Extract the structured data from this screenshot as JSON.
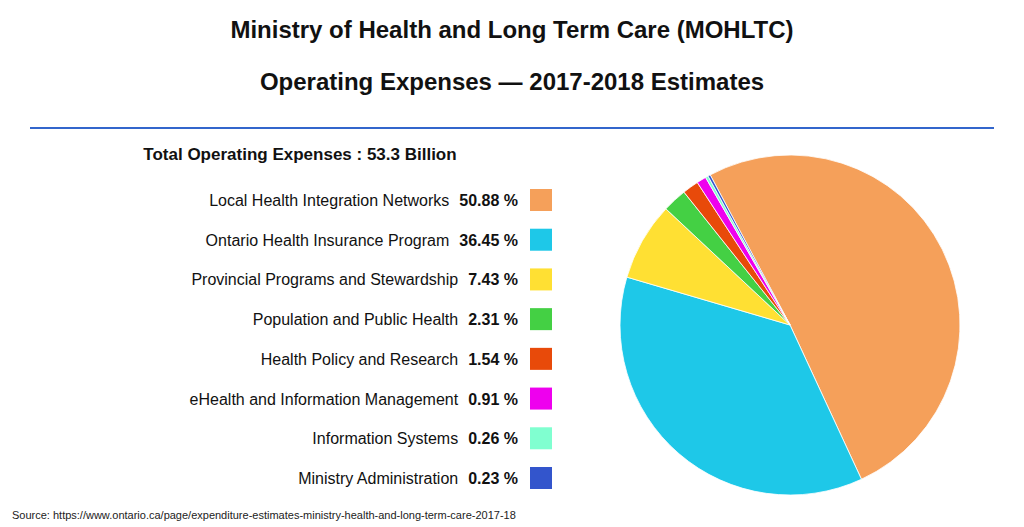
{
  "chart_data": {
    "type": "pie",
    "title": "Ministry of Health and Long Term Care (MOHLTC)",
    "subtitle": "Operating Expenses — 2017-2018 Estimates",
    "annotations": [
      "Total Operating Expenses : 53.3 Billion",
      "Source: https://www.ontario.ca/page/expenditure-estimates-ministry-health-and-long-term-care-2017-18"
    ],
    "categories": [
      "Local Health Integration Networks",
      "Ontario Health Insurance Program",
      "Provincial Programs and Stewardship",
      "Population and Public Health",
      "Health Policy and Research",
      "eHealth and Information Management",
      "Information Systems",
      "Ministry Administration"
    ],
    "values": [
      50.88,
      36.45,
      7.43,
      2.31,
      1.54,
      0.91,
      0.26,
      0.23
    ],
    "value_labels": [
      "50.88 %",
      "36.45 %",
      "7.43 %",
      "2.31 %",
      "1.54 %",
      "0.91 %",
      "0.26 %",
      "0.23 %"
    ],
    "colors": [
      "#F5A05A",
      "#1EC8E8",
      "#FFE033",
      "#44D044",
      "#E84A0A",
      "#EE00EE",
      "#80FFD0",
      "#3355CC"
    ],
    "legend": "left"
  }
}
